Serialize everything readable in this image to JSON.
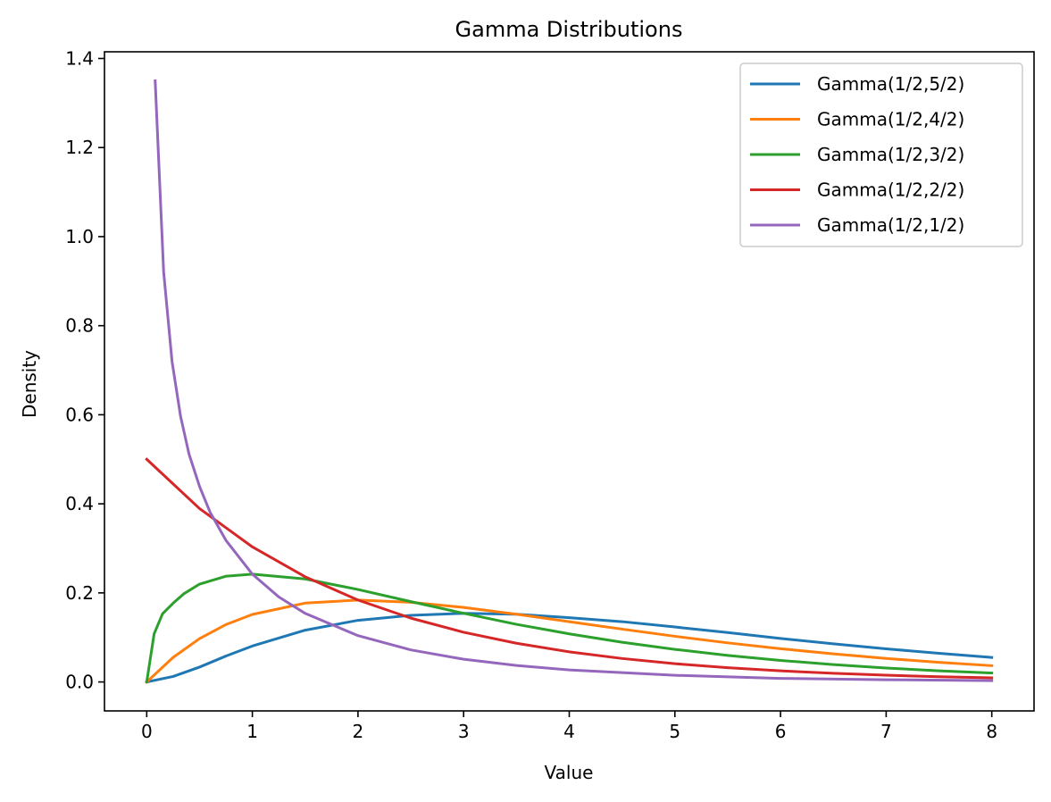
{
  "chart_data": {
    "type": "line",
    "title": "Gamma Distributions",
    "xlabel": "Value",
    "ylabel": "Density",
    "xlim": [
      -0.4,
      8.4
    ],
    "ylim": [
      -0.065,
      1.415
    ],
    "x_ticks": [
      0,
      1,
      2,
      3,
      4,
      5,
      6,
      7,
      8
    ],
    "y_ticks": [
      0.0,
      0.2,
      0.4,
      0.6,
      0.8,
      1.0,
      1.2,
      1.4
    ],
    "x_tick_labels": [
      "0",
      "1",
      "2",
      "3",
      "4",
      "5",
      "6",
      "7",
      "8"
    ],
    "y_tick_labels": [
      "0.0",
      "0.2",
      "0.4",
      "0.6",
      "0.8",
      "1.0",
      "1.2",
      "1.4"
    ],
    "grid": false,
    "legend_position": "top-right",
    "series": [
      {
        "name": "Gamma(1/2,5/2)",
        "color": "#1f77b4",
        "x": [
          0,
          0.25,
          0.5,
          0.75,
          1,
          1.5,
          2,
          2.5,
          3,
          3.5,
          4,
          4.5,
          5,
          5.5,
          6,
          6.5,
          7,
          7.5,
          8
        ],
        "y": [
          0,
          0.0123,
          0.0334,
          0.0582,
          0.0807,
          0.1163,
          0.1384,
          0.1496,
          0.1542,
          0.1521,
          0.1443,
          0.1354,
          0.1234,
          0.1109,
          0.0977,
          0.0856,
          0.0744,
          0.0644,
          0.0551
        ]
      },
      {
        "name": "Gamma(1/2,4/2)",
        "color": "#ff7f0e",
        "x": [
          0,
          0.25,
          0.5,
          0.75,
          1,
          1.5,
          2,
          2.5,
          3,
          3.5,
          4,
          4.5,
          5,
          5.5,
          6,
          6.5,
          7,
          7.5,
          8
        ],
        "y": [
          0,
          0.0551,
          0.0973,
          0.1289,
          0.1516,
          0.1771,
          0.1839,
          0.179,
          0.1673,
          0.1521,
          0.1353,
          0.1186,
          0.1026,
          0.0878,
          0.0747,
          0.063,
          0.0528,
          0.0441,
          0.0366
        ]
      },
      {
        "name": "Gamma(1/2,3/2)",
        "color": "#2ca02c",
        "x": [
          0,
          0.07,
          0.15,
          0.25,
          0.35,
          0.5,
          0.75,
          1,
          1.5,
          2,
          2.5,
          3,
          3.5,
          4,
          4.5,
          5,
          5.5,
          6,
          6.5,
          7,
          7.5,
          8
        ],
        "y": [
          0,
          0.108,
          0.1532,
          0.1769,
          0.1978,
          0.2197,
          0.2375,
          0.242,
          0.2313,
          0.2076,
          0.1804,
          0.1542,
          0.1294,
          0.108,
          0.0892,
          0.0732,
          0.0596,
          0.0483,
          0.039,
          0.0313,
          0.0251,
          0.02
        ]
      },
      {
        "name": "Gamma(1/2,2/2)",
        "color": "#d62728",
        "x": [
          0,
          0.5,
          1,
          1.5,
          2,
          2.5,
          3,
          3.5,
          4,
          4.5,
          5,
          5.5,
          6,
          6.5,
          7,
          7.5,
          8
        ],
        "y": [
          0.5,
          0.3894,
          0.3033,
          0.2362,
          0.1839,
          0.1433,
          0.1116,
          0.0869,
          0.0677,
          0.0527,
          0.041,
          0.032,
          0.0249,
          0.0194,
          0.0151,
          0.0118,
          0.0092
        ]
      },
      {
        "name": "Gamma(1/2,1/2)",
        "color": "#9467bd",
        "x": [
          0.08,
          0.16,
          0.24,
          0.32,
          0.4,
          0.5,
          0.6,
          0.75,
          1,
          1.25,
          1.5,
          2,
          2.5,
          3,
          3.5,
          4,
          5,
          6,
          7,
          8
        ],
        "y": [
          1.35,
          0.921,
          0.719,
          0.597,
          0.512,
          0.439,
          0.381,
          0.318,
          0.242,
          0.191,
          0.154,
          0.104,
          0.072,
          0.051,
          0.037,
          0.027,
          0.015,
          0.008,
          0.005,
          0.003
        ]
      }
    ]
  }
}
